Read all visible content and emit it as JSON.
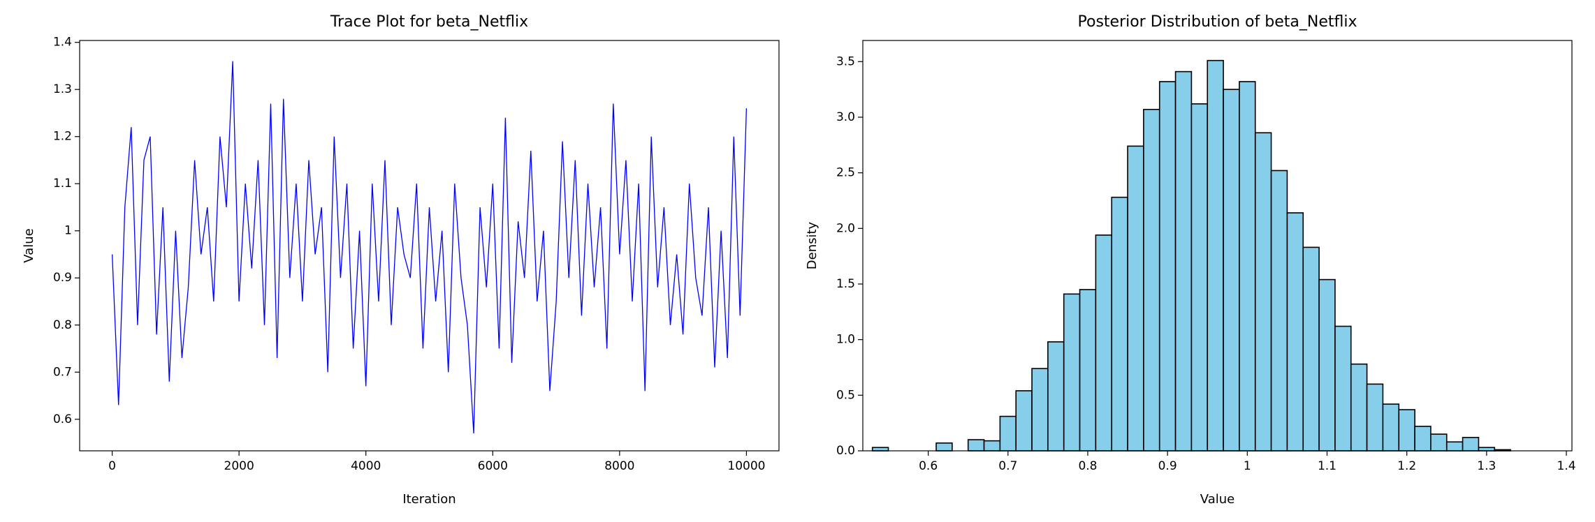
{
  "chart_data": [
    {
      "type": "line",
      "title": "Trace Plot for beta_Netflix",
      "x_label": "Iteration",
      "y_label": "Value",
      "color": "#0000ff",
      "x": [
        0,
        100,
        200,
        300,
        400,
        500,
        600,
        700,
        800,
        900,
        1000,
        1100,
        1200,
        1300,
        1400,
        1500,
        1600,
        1700,
        1800,
        1900,
        2000,
        2100,
        2200,
        2300,
        2400,
        2500,
        2600,
        2700,
        2800,
        2900,
        3000,
        3100,
        3200,
        3300,
        3400,
        3500,
        3600,
        3700,
        3800,
        3900,
        4000,
        4100,
        4200,
        4300,
        4400,
        4500,
        4600,
        4700,
        4800,
        4900,
        5000,
        5100,
        5200,
        5300,
        5400,
        5500,
        5600,
        5700,
        5800,
        5900,
        6000,
        6100,
        6200,
        6300,
        6400,
        6500,
        6600,
        6700,
        6800,
        6900,
        7000,
        7100,
        7200,
        7300,
        7400,
        7500,
        7600,
        7700,
        7800,
        7900,
        8000,
        8100,
        8200,
        8300,
        8400,
        8500,
        8600,
        8700,
        8800,
        8900,
        9000,
        9100,
        9200,
        9300,
        9400,
        9500,
        9600,
        9700,
        9800,
        9900,
        10000
      ],
      "values": [
        0.95,
        0.63,
        1.05,
        1.22,
        0.8,
        1.15,
        1.2,
        0.78,
        1.05,
        0.68,
        1.0,
        0.73,
        0.88,
        1.15,
        0.95,
        1.05,
        0.85,
        1.2,
        1.05,
        1.36,
        0.85,
        1.1,
        0.92,
        1.15,
        0.8,
        1.27,
        0.73,
        1.28,
        0.9,
        1.1,
        0.85,
        1.15,
        0.95,
        1.05,
        0.7,
        1.2,
        0.9,
        1.1,
        0.75,
        1.0,
        0.67,
        1.1,
        0.85,
        1.15,
        0.8,
        1.05,
        0.95,
        0.9,
        1.1,
        0.75,
        1.05,
        0.85,
        1.0,
        0.7,
        1.1,
        0.9,
        0.8,
        0.57,
        1.05,
        0.88,
        1.1,
        0.75,
        1.24,
        0.72,
        1.02,
        0.9,
        1.17,
        0.85,
        1.0,
        0.66,
        0.85,
        1.19,
        0.9,
        1.15,
        0.82,
        1.1,
        0.88,
        1.05,
        0.75,
        1.27,
        0.95,
        1.15,
        0.85,
        1.1,
        0.66,
        1.2,
        0.88,
        1.05,
        0.8,
        0.95,
        0.78,
        1.1,
        0.9,
        0.82,
        1.05,
        0.71,
        1.0,
        0.73,
        1.2,
        0.82,
        1.26
      ],
      "xlim": [
        -513,
        10513
      ],
      "ylim": [
        0.533,
        1.404
      ],
      "xticks": [
        0,
        2000,
        4000,
        6000,
        8000,
        10000
      ],
      "yticks": [
        0.6,
        0.7,
        0.8,
        0.9,
        1.0,
        1.1,
        1.2,
        1.3,
        1.4
      ]
    },
    {
      "type": "histogram",
      "title": "Posterior Distribution of beta_Netflix",
      "x_label": "Value",
      "y_label": "Density",
      "color": "#87ceeb",
      "edgecolor": "#000000",
      "bins": [
        0.53,
        0.55,
        0.57,
        0.59,
        0.61,
        0.63,
        0.65,
        0.67,
        0.69,
        0.71,
        0.73,
        0.75,
        0.77,
        0.79,
        0.81,
        0.83,
        0.85,
        0.87,
        0.89,
        0.91,
        0.93,
        0.95,
        0.97,
        0.99,
        1.01,
        1.03,
        1.05,
        1.07,
        1.09,
        1.11,
        1.13,
        1.15,
        1.17,
        1.19,
        1.21,
        1.23,
        1.25,
        1.27,
        1.29,
        1.31,
        1.33
      ],
      "values": [
        0.03,
        0,
        0,
        0,
        0.07,
        0,
        0.1,
        0.09,
        0.31,
        0.54,
        0.74,
        0.98,
        1.41,
        1.45,
        1.94,
        2.28,
        2.74,
        3.07,
        3.32,
        3.41,
        3.12,
        3.51,
        3.25,
        3.32,
        2.86,
        2.52,
        2.14,
        1.83,
        1.54,
        1.12,
        0.78,
        0.6,
        0.42,
        0.37,
        0.22,
        0.15,
        0.08,
        0.12,
        0.03,
        0.01
      ],
      "xlim": [
        0.518,
        1.407
      ],
      "ylim": [
        0,
        3.69
      ],
      "xticks": [
        0.6,
        0.7,
        0.8,
        0.9,
        1.0,
        1.1,
        1.2,
        1.3,
        1.4
      ],
      "yticks": [
        {
          "value": 0,
          "label": "0.0"
        },
        0.5,
        {
          "value": 1,
          "label": "1.0"
        },
        1.5,
        {
          "value": 2,
          "label": "2.0"
        },
        2.5,
        {
          "value": 3,
          "label": "3.0"
        },
        3.5
      ]
    }
  ]
}
